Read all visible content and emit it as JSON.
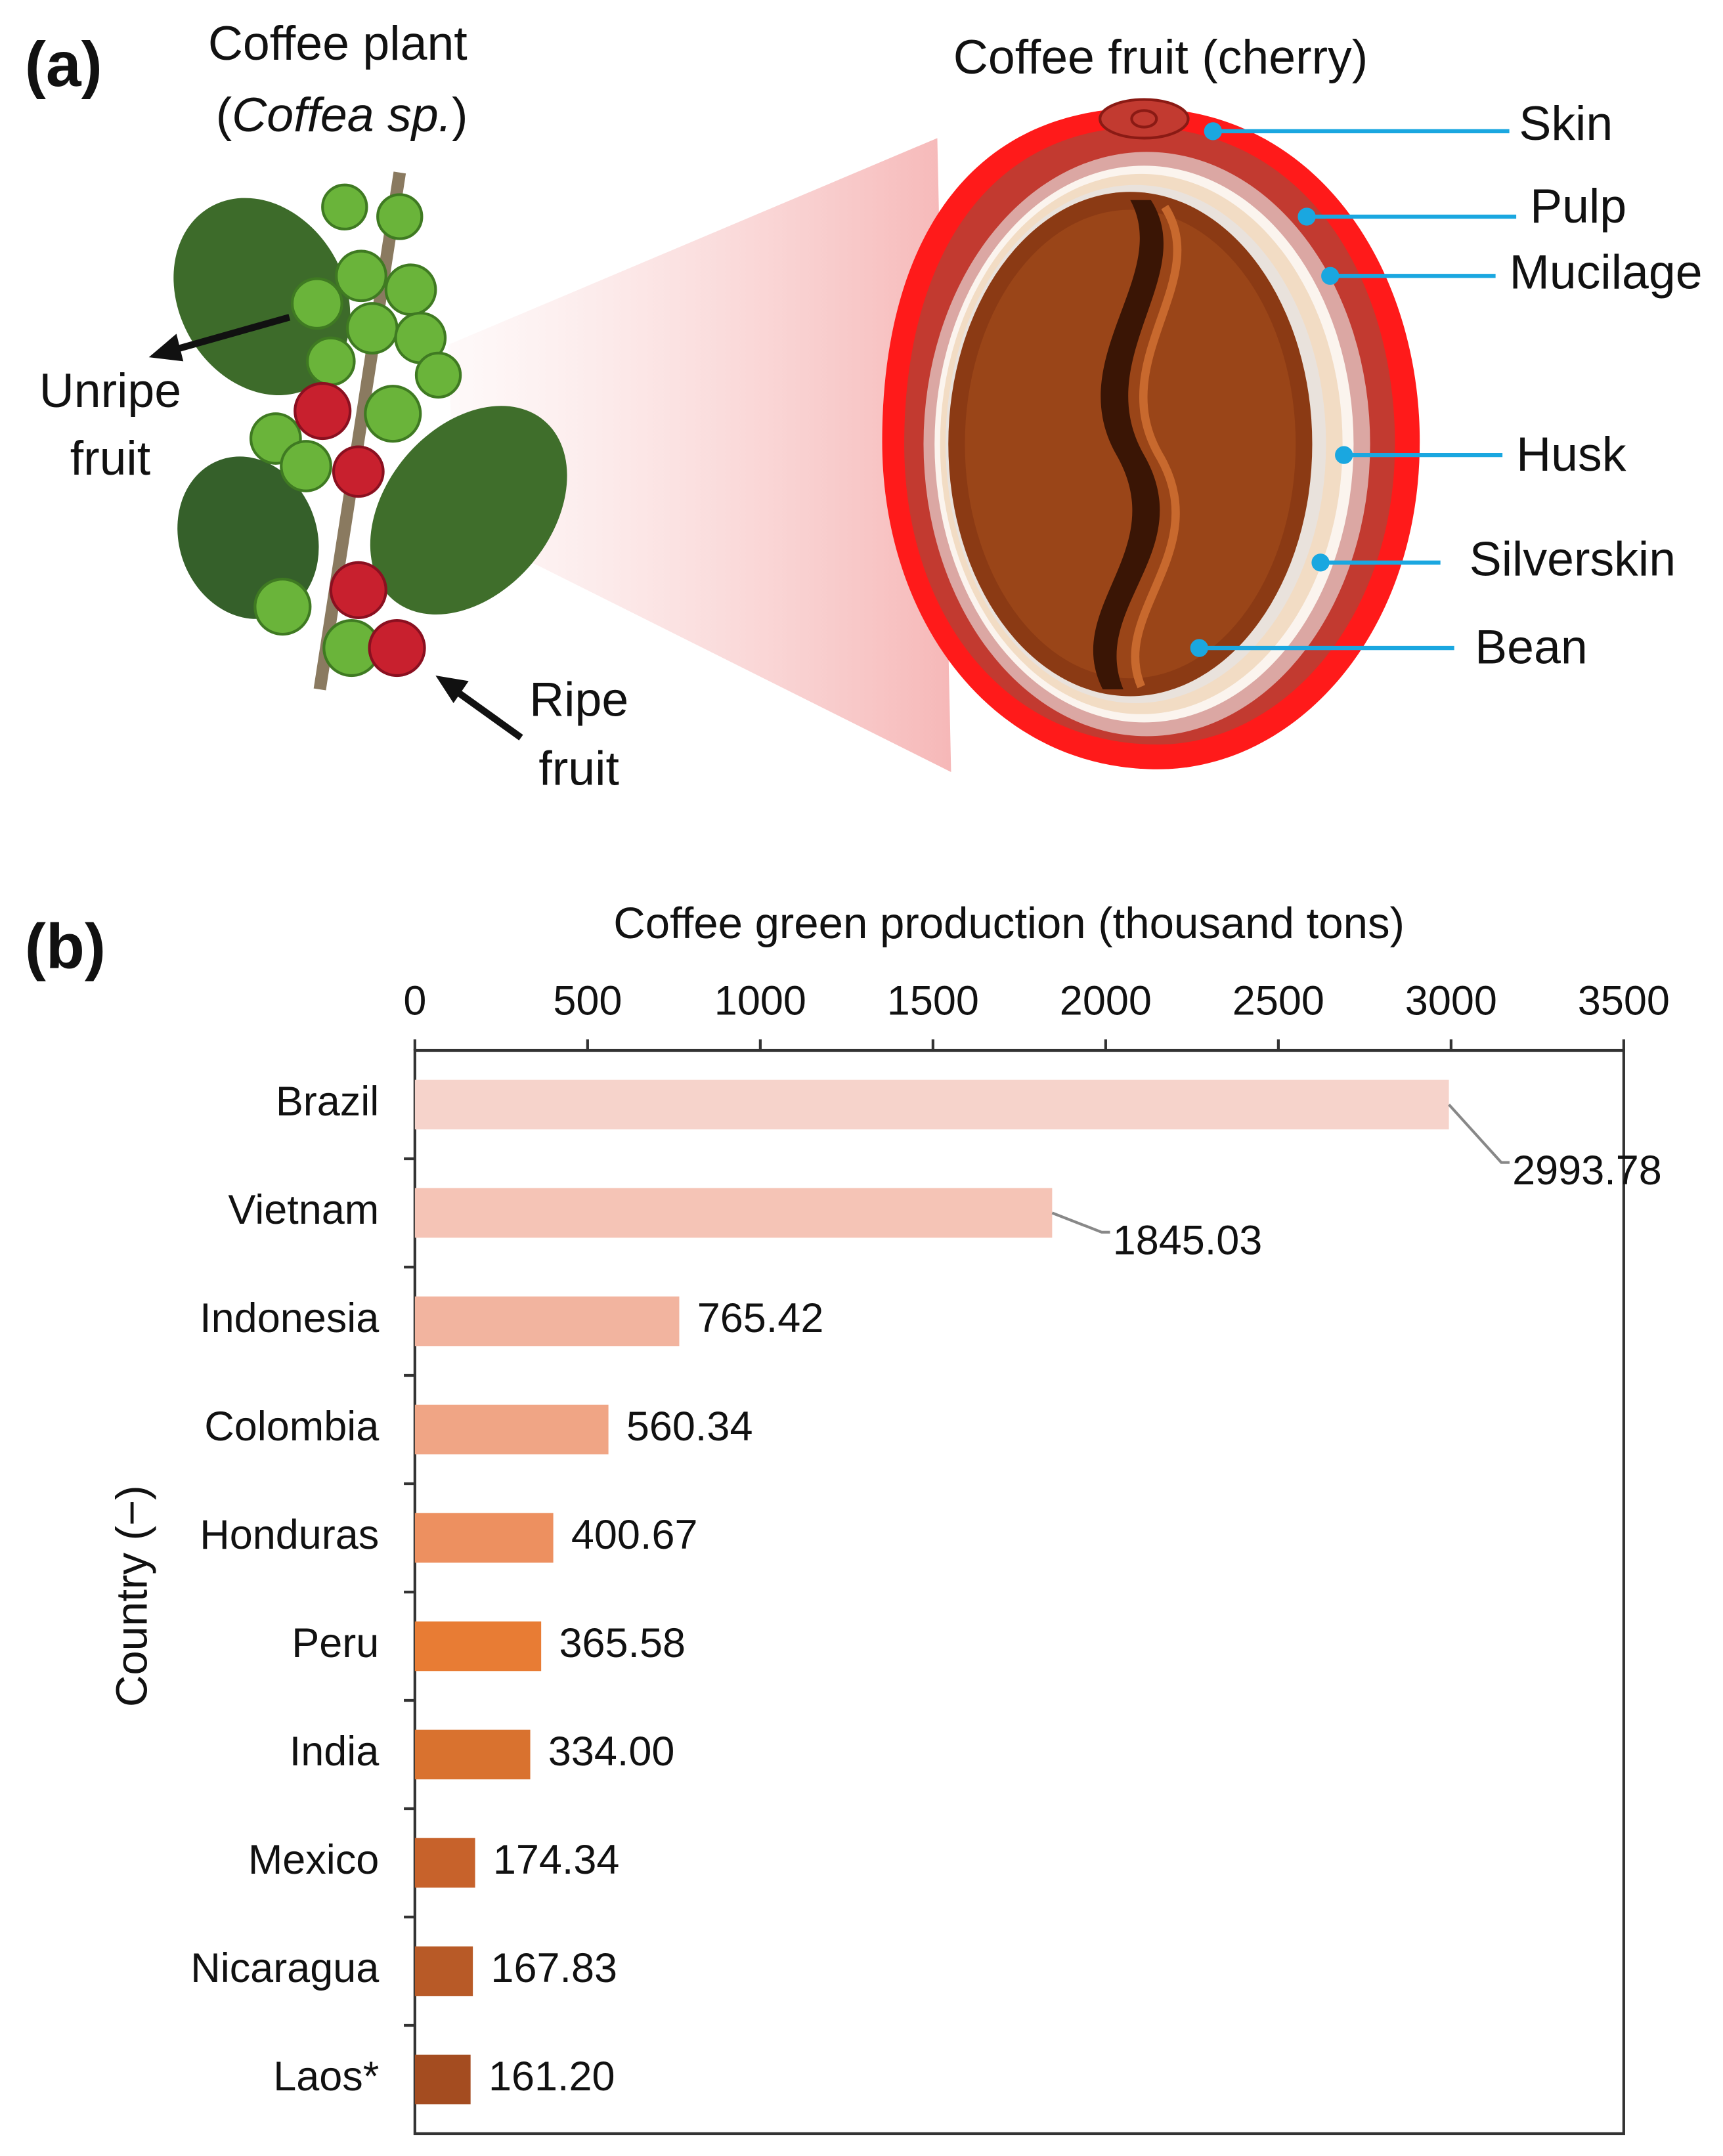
{
  "panel_a": {
    "label": "(a)",
    "plant_title": "Coffee plant",
    "plant_species": [
      "(",
      "Coffea sp.",
      ")"
    ],
    "unripe": [
      "Unripe",
      "fruit"
    ],
    "ripe": [
      "Ripe",
      "fruit"
    ],
    "fruit_title": "Coffee fruit (cherry)",
    "parts": [
      "Skin",
      "Pulp",
      "Mucilage",
      "Husk",
      "Silverskin",
      "Bean"
    ]
  },
  "chart_data": {
    "type": "bar",
    "orientation": "horizontal",
    "panel_label": "(b)",
    "xlabel": "Coffee green production (thousand tons)",
    "ylabel": "Country (−)",
    "categories": [
      "Brazil",
      "Vietnam",
      "Indonesia",
      "Colombia",
      "Honduras",
      "Peru",
      "India",
      "Mexico",
      "Nicaragua",
      "Laos*"
    ],
    "values": [
      2993.78,
      1845.03,
      765.42,
      560.34,
      400.67,
      365.58,
      334,
      174.34,
      167.83,
      161.2
    ],
    "value_labels": [
      "2993.78",
      "1845.03",
      "765.42",
      "560.34",
      "400.67",
      "365.58",
      "334.00",
      "174.34",
      "167.83",
      "161.20"
    ],
    "colors": [
      "#f6d3cb",
      "#f5c4b6",
      "#f2b49f",
      "#f0a585",
      "#ed9060",
      "#e87c34",
      "#d9722f",
      "#c7622b",
      "#b85a27",
      "#a44c20"
    ],
    "xlim": [
      0,
      3500
    ],
    "xticks": [
      0,
      500,
      1000,
      1500,
      2000,
      2500,
      3000,
      3500
    ],
    "xaxis_position": "top"
  }
}
